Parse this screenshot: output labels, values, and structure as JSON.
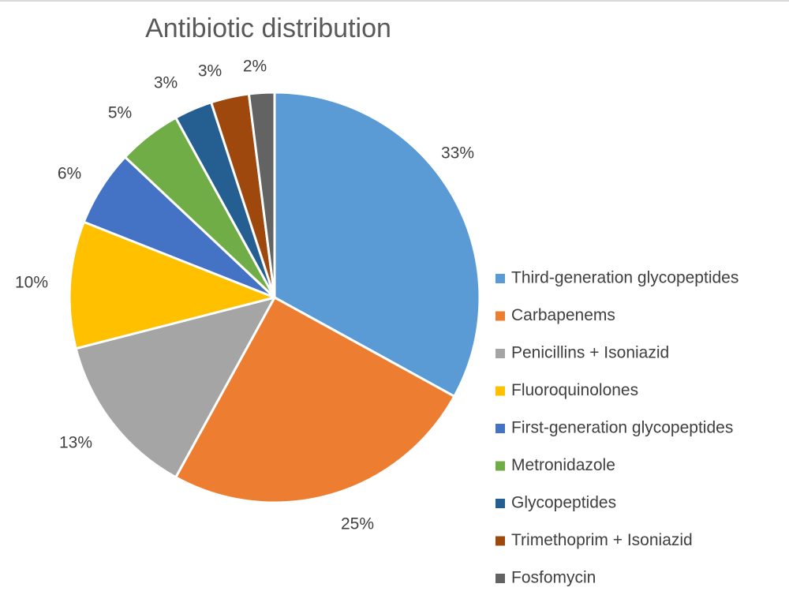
{
  "chart_data": {
    "type": "pie",
    "title": "Antibiotic distribution",
    "categories": [
      "Third-generation glycopeptides",
      "Carbapenems",
      "Penicillins + Isoniazid",
      "Fluoroquinolones",
      "First-generation glycopeptides",
      "Metronidazole",
      "Glycopeptides",
      "Trimethoprim + Isoniazid",
      "Fosfomycin"
    ],
    "values": [
      33,
      25,
      13,
      10,
      6,
      5,
      3,
      3,
      2
    ],
    "data_labels": [
      "33%",
      "25%",
      "13%",
      "10%",
      "6%",
      "5%",
      "3%",
      "3%",
      "2%"
    ],
    "colors": [
      "#5B9BD5",
      "#ED7D31",
      "#A5A5A5",
      "#FFC000",
      "#4472C4",
      "#70AD47",
      "#255E91",
      "#9E480E",
      "#636363"
    ],
    "legend_position": "right"
  }
}
